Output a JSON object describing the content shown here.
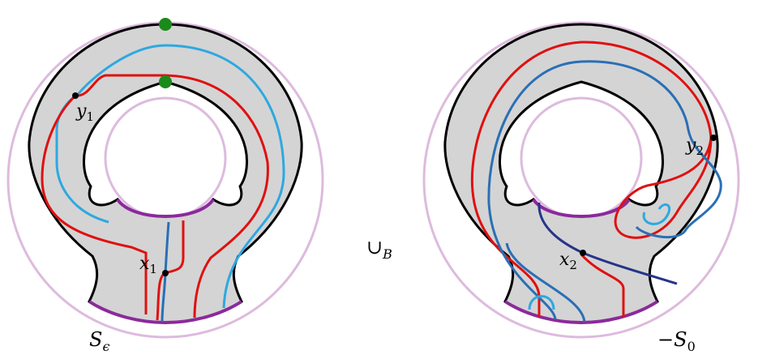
{
  "left_surface": {
    "label_base": "S",
    "label_sub": "ϵ",
    "point_labels": [
      {
        "base": "y",
        "sub": "1"
      },
      {
        "base": "x",
        "sub": "1"
      }
    ]
  },
  "right_surface": {
    "label_base": "−S",
    "label_sub": "0",
    "point_labels": [
      {
        "base": "y",
        "sub": "2"
      },
      {
        "base": "x",
        "sub": "2"
      }
    ]
  },
  "operator": {
    "symbol": "∪",
    "sub": "B"
  },
  "colors": {
    "surface_fill": "#d4d4d4",
    "boundary": "#000000",
    "outer_circle": "#ddbbdd",
    "arc_purple": "#8b2a9b",
    "red": "#e01010",
    "light_blue": "#2ea8e0",
    "mid_blue": "#2a6fb5",
    "navy": "#26348a",
    "green": "#1a8a1a"
  }
}
